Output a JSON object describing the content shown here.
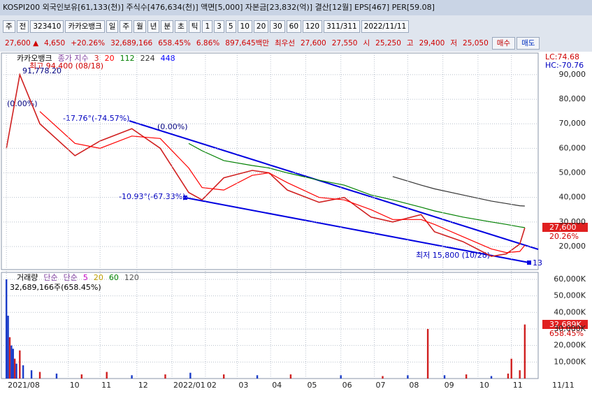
{
  "header": {
    "title": "KOSPI200 외국인보유[61,133(천)] 주식수[476,634(천)] 액면[5,000] 자본금[23,832(억)] 결산[12월] EPS[467] PER[59.08]"
  },
  "toolbar": {
    "items": [
      "주",
      "전",
      "323410",
      "카카오뱅크",
      "일",
      "주",
      "월",
      "년",
      "분",
      "초",
      "틱",
      "1",
      "3",
      "5",
      "10",
      "20",
      "30",
      "60",
      "120",
      "311/311",
      "2022/11/11"
    ]
  },
  "quote": {
    "items": [
      "27,600 ▲",
      "4,650",
      "+20.26%",
      "32,689,166",
      "658.45%",
      "6.86%",
      "897,645백만",
      "최우선",
      "27,600",
      "27,550",
      "시",
      "25,250",
      "고",
      "29,400",
      "저",
      "25,050"
    ],
    "buy": "매수",
    "sell": "매도"
  },
  "annotations": {
    "high": "최고 94,400 (08/18)",
    "high_value": "91,778.20",
    "pct": "(0.00%)",
    "pct2": "(0.00%)",
    "upper_angle": "-17.76°(-74.57%)",
    "lower_angle": "-10.93°(-67.33%)",
    "low": "최저 15,800 (10/28)",
    "count": "13",
    "lc": "LC:74.68",
    "hc": "HC:-70.76",
    "last_price": "27,600",
    "last_pct": "20.26%",
    "vol_last": "32,689K",
    "vol_pct": "658.45%",
    "x_end": "11/11"
  },
  "chart_data": [
    {
      "type": "line",
      "name": "카카오뱅크",
      "legend_title": "종가 지수",
      "x": [
        0,
        8,
        20,
        41,
        56,
        75,
        92,
        109,
        117,
        130,
        147,
        157,
        168,
        187,
        202,
        218,
        231,
        248,
        256,
        273,
        290,
        299,
        307,
        310
      ],
      "series": [
        {
          "name": "3",
          "color": "#d02020",
          "values": [
            60000,
            90000,
            70000,
            57000,
            63000,
            68000,
            60000,
            42000,
            39000,
            48000,
            51000,
            50000,
            43000,
            38000,
            40000,
            32000,
            30000,
            33000,
            26000,
            22000,
            16000,
            17000,
            21000,
            27600
          ]
        },
        {
          "name": "20",
          "color": "#ff0000",
          "values": [
            null,
            null,
            75000,
            62000,
            60000,
            65000,
            64000,
            52000,
            44000,
            43000,
            49000,
            50000,
            46000,
            40000,
            39000,
            35000,
            31000,
            31000,
            29000,
            24000,
            19000,
            17500,
            18000,
            20500
          ]
        },
        {
          "name": "112",
          "color": "#008000",
          "values": [
            null,
            null,
            null,
            null,
            null,
            null,
            null,
            62000,
            59000,
            55000,
            53000,
            52000,
            50000,
            47000,
            45000,
            41000,
            39000,
            36000,
            34500,
            32000,
            30000,
            29000,
            28000,
            27700
          ]
        },
        {
          "name": "224",
          "color": "#333333",
          "values": [
            null,
            null,
            null,
            null,
            null,
            null,
            null,
            null,
            null,
            null,
            null,
            null,
            null,
            null,
            null,
            null,
            48500,
            45000,
            43500,
            41000,
            38500,
            37500,
            36600,
            36500
          ]
        },
        {
          "name": "448",
          "color": "#0000ff",
          "values": [
            null,
            null,
            null,
            null,
            null,
            null,
            null,
            null,
            null,
            null,
            null,
            null,
            null,
            null,
            null,
            null,
            null,
            null,
            null,
            null,
            null,
            null,
            null,
            null
          ]
        }
      ],
      "xlim": [
        -3,
        318
      ],
      "ylim": [
        10600,
        98800
      ],
      "yticks": [
        {
          "value": 20000,
          "label": "20,000"
        },
        {
          "value": 30000,
          "label": "30,000"
        },
        {
          "value": 40000,
          "label": "40,000"
        },
        {
          "value": 50000,
          "label": "50,000"
        },
        {
          "value": 60000,
          "label": "60,000"
        },
        {
          "value": 70000,
          "label": "70,000"
        },
        {
          "value": 80000,
          "label": "80,000"
        },
        {
          "value": 90000,
          "label": "90,000"
        }
      ],
      "grid": true
    },
    {
      "type": "bar",
      "name": "거래량",
      "legend_title": "단순",
      "ma_names": [
        "5",
        "20",
        "60",
        "120"
      ],
      "ma_colors": [
        "#c000c0",
        "#c0a000",
        "#008000",
        "#555555"
      ],
      "summary": "32,689,166주(658.45%)",
      "x": [
        0,
        1,
        2,
        3,
        4,
        5,
        6,
        8,
        10,
        15,
        20,
        30,
        45,
        60,
        75,
        95,
        110,
        130,
        150,
        170,
        200,
        225,
        240,
        252,
        262,
        275,
        290,
        300,
        302,
        307,
        310
      ],
      "values": [
        60000,
        38000,
        25000,
        20000,
        18000,
        12000,
        9000,
        17000,
        8000,
        5000,
        4000,
        3000,
        2500,
        4000,
        2000,
        2500,
        3500,
        2500,
        2000,
        2500,
        2000,
        1500,
        2000,
        30000,
        2000,
        2500,
        1500,
        3000,
        12000,
        5000,
        32689
      ],
      "colors": [
        "#1a3cc8",
        "#1a3cc8",
        "#d02020",
        "#1a3cc8",
        "#1a3cc8",
        "#d02020",
        "#1a3cc8",
        "#d02020",
        "#1a3cc8",
        "#1a3cc8",
        "#d02020",
        "#1a3cc8",
        "#d02020",
        "#d02020",
        "#1a3cc8",
        "#d02020",
        "#1a3cc8",
        "#d02020",
        "#1a3cc8",
        "#d02020",
        "#1a3cc8",
        "#d02020",
        "#1a3cc8",
        "#d02020",
        "#1a3cc8",
        "#d02020",
        "#1a3cc8",
        "#d02020",
        "#d02020",
        "#d02020",
        "#d02020"
      ],
      "xlim": [
        -3,
        318
      ],
      "ylim": [
        0,
        64200
      ],
      "yticks": [
        {
          "value": 10000,
          "label": "10,000K"
        },
        {
          "value": 20000,
          "label": "20,000K"
        },
        {
          "value": 30000,
          "label": "30,000K"
        },
        {
          "value": 40000,
          "label": "40,000K"
        },
        {
          "value": 50000,
          "label": "50,000K"
        },
        {
          "value": 60000,
          "label": "60,000K"
        }
      ],
      "xticks": [
        {
          "value": 0,
          "label": "2021/08"
        },
        {
          "value": 37,
          "label": "10"
        },
        {
          "value": 56,
          "label": "11"
        },
        {
          "value": 78,
          "label": "12"
        },
        {
          "value": 99,
          "label": "2022/01"
        },
        {
          "value": 119,
          "label": "02"
        },
        {
          "value": 138,
          "label": "03"
        },
        {
          "value": 158,
          "label": "04"
        },
        {
          "value": 179,
          "label": "05"
        },
        {
          "value": 200,
          "label": "06"
        },
        {
          "value": 220,
          "label": "07"
        },
        {
          "value": 240,
          "label": "08"
        },
        {
          "value": 261,
          "label": "09"
        },
        {
          "value": 282,
          "label": "10"
        },
        {
          "value": 302,
          "label": "11"
        }
      ],
      "grid": true
    }
  ]
}
